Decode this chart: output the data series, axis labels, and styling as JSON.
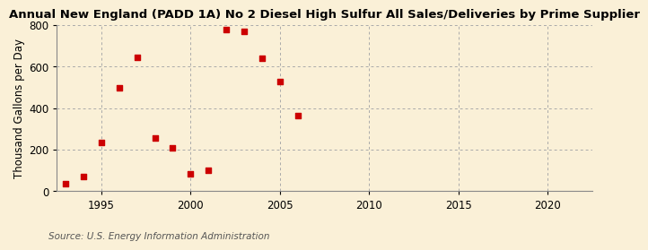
{
  "title": "Annual New England (PADD 1A) No 2 Diesel High Sulfur All Sales/Deliveries by Prime Supplier",
  "ylabel": "Thousand Gallons per Day",
  "source": "Source: U.S. Energy Information Administration",
  "background_color": "#faf0d7",
  "x_values": [
    1993,
    1994,
    1995,
    1996,
    1997,
    1998,
    1999,
    2000,
    2001,
    2002,
    2003,
    2004,
    2005,
    2006
  ],
  "y_values": [
    38,
    72,
    235,
    500,
    645,
    255,
    210,
    82,
    100,
    780,
    770,
    640,
    530,
    365
  ],
  "marker_color": "#cc0000",
  "marker_size": 18,
  "xlim": [
    1992.5,
    2022.5
  ],
  "ylim": [
    0,
    800
  ],
  "yticks": [
    0,
    200,
    400,
    600,
    800
  ],
  "xticks": [
    1995,
    2000,
    2005,
    2010,
    2015,
    2020
  ],
  "title_fontsize": 9.5,
  "label_fontsize": 8.5,
  "tick_fontsize": 8.5,
  "source_fontsize": 7.5
}
